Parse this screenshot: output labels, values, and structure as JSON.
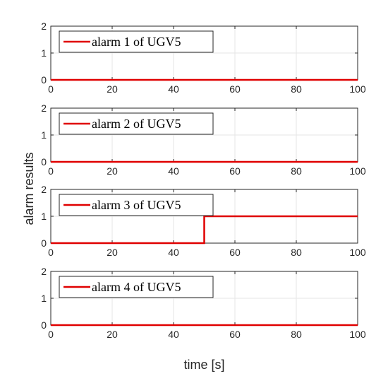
{
  "figure": {
    "xlabel": "time [s]",
    "ylabel": "alarm results"
  },
  "colors": {
    "line": "#e00000",
    "grid": "#e6e6e6",
    "axis": "#262626",
    "legend_border": "#262626"
  },
  "chart_data": [
    {
      "type": "line",
      "legend": "alarm 1 of UGV5",
      "legend_placement": "top-left",
      "grid": true,
      "xlim": [
        0,
        100
      ],
      "ylim": [
        0,
        2
      ],
      "x_ticks": [
        "0",
        "20",
        "40",
        "60",
        "80",
        "100"
      ],
      "y_ticks": [
        "0",
        "1",
        "2"
      ],
      "series": [
        {
          "name": "alarm 1 of UGV5",
          "x": [
            0,
            100
          ],
          "y": [
            0,
            0
          ]
        }
      ]
    },
    {
      "type": "line",
      "legend": "alarm 2 of UGV5",
      "legend_placement": "top-left",
      "grid": true,
      "xlim": [
        0,
        100
      ],
      "ylim": [
        0,
        2
      ],
      "x_ticks": [
        "0",
        "20",
        "40",
        "60",
        "80",
        "100"
      ],
      "y_ticks": [
        "0",
        "1",
        "2"
      ],
      "series": [
        {
          "name": "alarm 2 of UGV5",
          "x": [
            0,
            100
          ],
          "y": [
            0,
            0
          ]
        }
      ]
    },
    {
      "type": "line",
      "legend": "alarm 3 of UGV5",
      "legend_placement": "top-left",
      "grid": true,
      "xlim": [
        0,
        100
      ],
      "ylim": [
        0,
        2
      ],
      "x_ticks": [
        "0",
        "20",
        "40",
        "60",
        "80",
        "100"
      ],
      "y_ticks": [
        "0",
        "1",
        "2"
      ],
      "series": [
        {
          "name": "alarm 3 of UGV5",
          "x": [
            0,
            50,
            50,
            100
          ],
          "y": [
            0,
            0,
            1,
            1
          ]
        }
      ]
    },
    {
      "type": "line",
      "legend": "alarm 4 of UGV5",
      "legend_placement": "top-left",
      "grid": true,
      "xlim": [
        0,
        100
      ],
      "ylim": [
        0,
        2
      ],
      "x_ticks": [
        "0",
        "20",
        "40",
        "60",
        "80",
        "100"
      ],
      "y_ticks": [
        "0",
        "1",
        "2"
      ],
      "series": [
        {
          "name": "alarm 4 of UGV5",
          "x": [
            0,
            100
          ],
          "y": [
            0,
            0
          ]
        }
      ]
    }
  ]
}
